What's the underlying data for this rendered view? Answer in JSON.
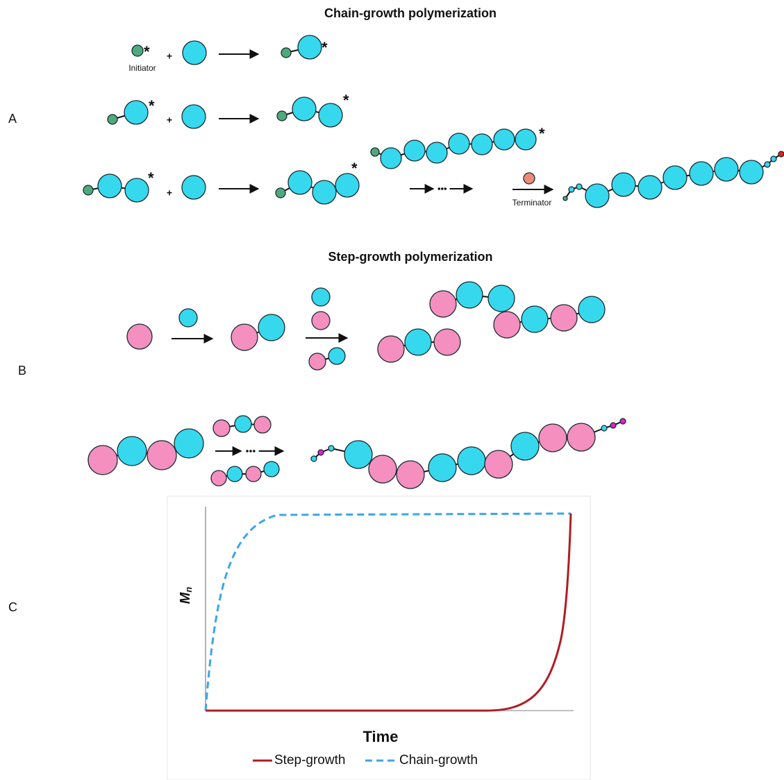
{
  "panels": {
    "A": {
      "label": "A",
      "title": "Chain-growth polymerization",
      "initiator": "Initiator",
      "terminator": "Terminator",
      "asterisk": "*",
      "plus": "+"
    },
    "B": {
      "label": "B",
      "title": "Step-growth polymerization"
    },
    "C": {
      "label": "C",
      "y_axis": "M",
      "y_axis_subscript": "n",
      "x_axis": "Time",
      "legend": [
        "Step-growth",
        "Chain-growth"
      ]
    }
  }
}
